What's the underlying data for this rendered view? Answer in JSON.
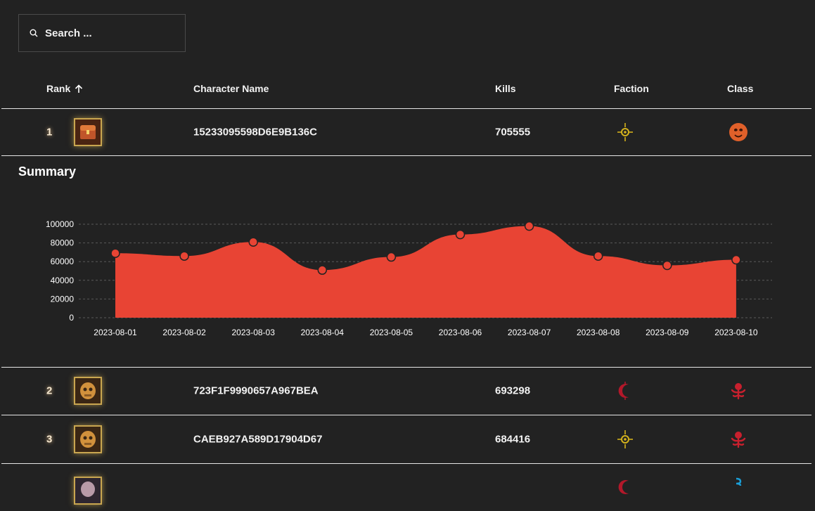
{
  "search": {
    "placeholder": "Search ..."
  },
  "table": {
    "headers": {
      "rank": "Rank",
      "name": "Character Name",
      "kills": "Kills",
      "faction": "Faction",
      "class": "Class"
    },
    "rows": [
      {
        "rank": "1",
        "name": "15233095598D6E9B136C",
        "kills": "705555",
        "faction_icon": "sun-faction-icon",
        "class_icon": "mask-class-icon"
      },
      {
        "rank": "2",
        "name": "723F1F9990657A967BEA",
        "kills": "693298",
        "faction_icon": "crescent-faction-icon",
        "class_icon": "tentacle-class-icon"
      },
      {
        "rank": "3",
        "name": "CAEB927A589D17904D67",
        "kills": "684416",
        "faction_icon": "sun-faction-icon",
        "class_icon": "tentacle-class-icon"
      }
    ]
  },
  "summary": {
    "title": "Summary"
  },
  "colors": {
    "accent": "#e84434",
    "background": "#222222",
    "gold": "#c9a650"
  },
  "chart_data": {
    "type": "area",
    "x": [
      "2023-08-01",
      "2023-08-02",
      "2023-08-03",
      "2023-08-04",
      "2023-08-05",
      "2023-08-06",
      "2023-08-07",
      "2023-08-08",
      "2023-08-09",
      "2023-08-10"
    ],
    "values": [
      69000,
      66000,
      81000,
      51000,
      65000,
      89000,
      98000,
      66000,
      56000,
      62000
    ],
    "yticks": [
      0,
      20000,
      40000,
      60000,
      80000,
      100000
    ],
    "ylim": [
      0,
      100000
    ],
    "grid": true,
    "title": "",
    "xlabel": "",
    "ylabel": ""
  }
}
